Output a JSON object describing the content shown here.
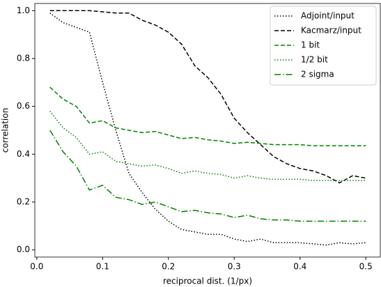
{
  "chart_data": {
    "type": "line",
    "xlabel": "reciprocal dist. (1/px)",
    "ylabel": "correlation",
    "x": [
      0.02,
      0.04,
      0.06,
      0.08,
      0.1,
      0.12,
      0.14,
      0.16,
      0.18,
      0.2,
      0.22,
      0.24,
      0.26,
      0.28,
      0.3,
      0.32,
      0.34,
      0.36,
      0.38,
      0.4,
      0.42,
      0.44,
      0.46,
      0.48,
      0.5
    ],
    "series": [
      {
        "name": "Adjoint/input",
        "color": "#000000",
        "linestyle": "dotted",
        "values": [
          0.99,
          0.95,
          0.93,
          0.91,
          0.7,
          0.5,
          0.32,
          0.24,
          0.17,
          0.12,
          0.085,
          0.075,
          0.065,
          0.065,
          0.045,
          0.035,
          0.045,
          0.03,
          0.03,
          0.03,
          0.025,
          0.02,
          0.03,
          0.025,
          0.03
        ]
      },
      {
        "name": "Kacmarz/input",
        "color": "#000000",
        "linestyle": "dashed",
        "values": [
          1.0,
          1.0,
          1.0,
          1.0,
          0.995,
          0.99,
          0.99,
          0.96,
          0.94,
          0.91,
          0.86,
          0.77,
          0.72,
          0.65,
          0.55,
          0.49,
          0.44,
          0.39,
          0.36,
          0.34,
          0.33,
          0.31,
          0.28,
          0.31,
          0.3
        ]
      },
      {
        "name": "1 bit",
        "color": "#008000",
        "linestyle": "dashed",
        "values": [
          0.68,
          0.63,
          0.6,
          0.53,
          0.54,
          0.51,
          0.5,
          0.49,
          0.495,
          0.48,
          0.465,
          0.47,
          0.46,
          0.455,
          0.445,
          0.45,
          0.445,
          0.44,
          0.44,
          0.44,
          0.435,
          0.435,
          0.435,
          0.435,
          0.435
        ]
      },
      {
        "name": "1/2 bit",
        "color": "#008000",
        "linestyle": "dotted",
        "values": [
          0.58,
          0.51,
          0.47,
          0.4,
          0.41,
          0.37,
          0.36,
          0.35,
          0.355,
          0.34,
          0.32,
          0.33,
          0.32,
          0.315,
          0.3,
          0.31,
          0.3,
          0.295,
          0.295,
          0.295,
          0.29,
          0.29,
          0.29,
          0.29,
          0.29
        ]
      },
      {
        "name": "2 sigma",
        "color": "#008000",
        "linestyle": "dashdot",
        "values": [
          0.5,
          0.41,
          0.35,
          0.25,
          0.27,
          0.22,
          0.21,
          0.19,
          0.2,
          0.18,
          0.16,
          0.165,
          0.155,
          0.15,
          0.135,
          0.145,
          0.13,
          0.125,
          0.125,
          0.12,
          0.12,
          0.12,
          0.12,
          0.12,
          0.12
        ]
      }
    ],
    "xlim": [
      -0.003,
      0.522
    ],
    "xticks": [
      {
        "value": 0,
        "label": "0.0"
      },
      0.1,
      0.2,
      0.3,
      0.4,
      0.5
    ],
    "ylim": [
      -0.03,
      1.03
    ],
    "yticks": [
      {
        "value": 0,
        "label": "0.0"
      },
      0.2,
      0.4,
      0.6,
      0.8,
      {
        "value": 1,
        "label": "1.0"
      }
    ],
    "grid": false,
    "legend": "upper right"
  }
}
